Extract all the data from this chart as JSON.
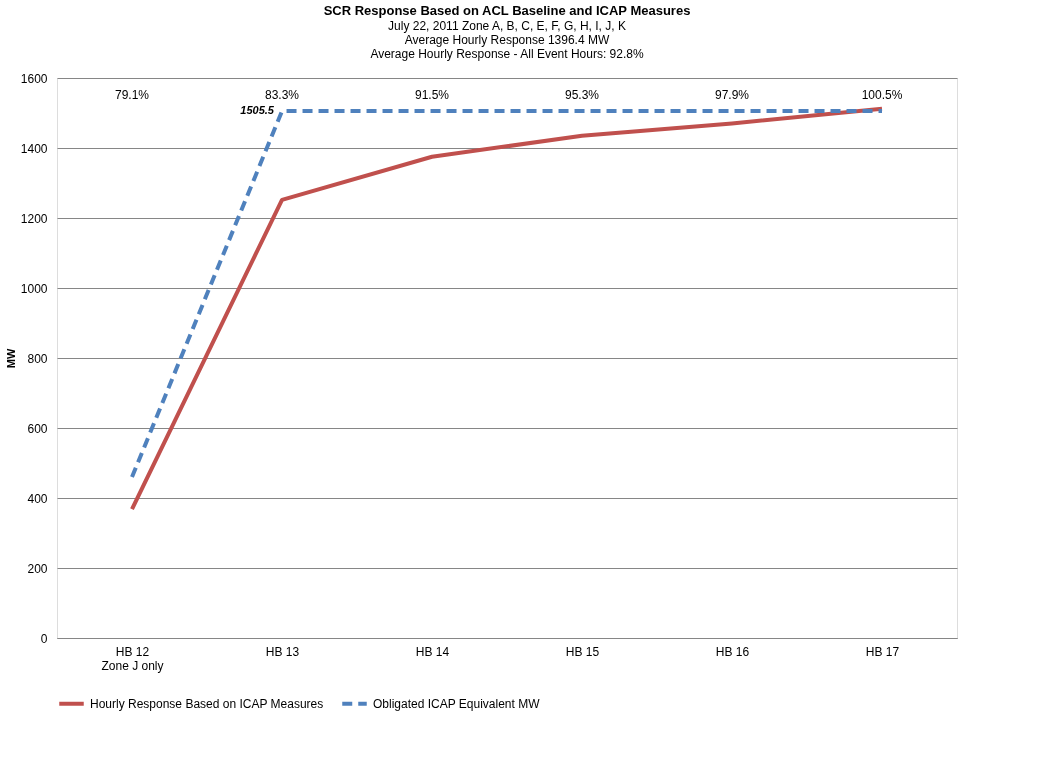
{
  "chart_data": {
    "type": "line",
    "title": "SCR Response Based on ACL Baseline and ICAP Measures",
    "subtitle": [
      "July 22, 2011 Zone A, B, C, E, F, G, H, I, J, K",
      "Average Hourly Response 1396.4 MW",
      "Average Hourly Response - All Event Hours: 92.8%"
    ],
    "ylabel": "MW",
    "categories": [
      "HB 12\nZone J only",
      "HB 13",
      "HB 14",
      "HB 15",
      "HB 16",
      "HB 17"
    ],
    "series": [
      {
        "name": "Hourly Response Based on ICAP Measures",
        "color": "#c0504d",
        "line_style": "solid",
        "values": [
          368,
          1252,
          1375,
          1435,
          1470,
          1512
        ]
      },
      {
        "name": "Obligated ICAP Equivalent MW",
        "color": "#4f81bd",
        "line_style": "dashed",
        "values": [
          460,
          1505.5,
          1505.5,
          1505.5,
          1505.5,
          1505.5
        ]
      }
    ],
    "annotations": [
      "79.1%",
      "83.3%",
      "91.5%",
      "95.3%",
      "97.9%",
      "100.5%",
      {
        "text": "1505.5",
        "x": "HB 13",
        "y": 1505.5
      }
    ],
    "ylim": [
      0,
      1600
    ],
    "yticks": [
      0,
      200,
      400,
      600,
      800,
      1000,
      1200,
      1400,
      1600
    ],
    "grid": "y",
    "legend": "bottom",
    "marker": "none"
  }
}
